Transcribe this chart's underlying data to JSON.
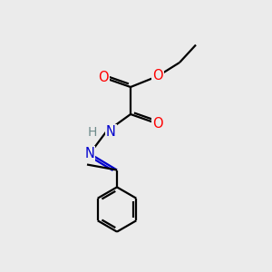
{
  "bg_color": "#ebebeb",
  "atom_colors": {
    "C": "#000000",
    "O": "#ff0000",
    "N": "#0000cd",
    "H": "#6e8b8b"
  },
  "bond_color": "#000000",
  "line_width": 1.6,
  "fig_size": [
    3.0,
    3.0
  ],
  "dpi": 100
}
